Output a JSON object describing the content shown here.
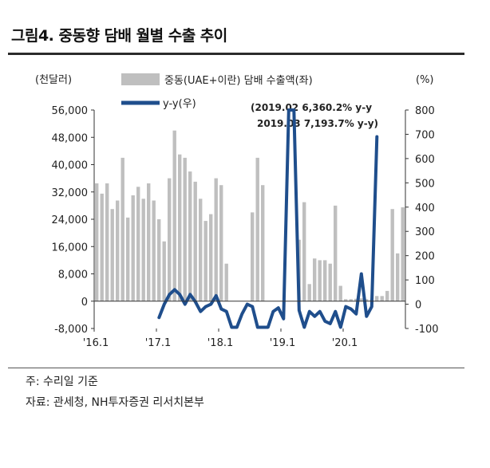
{
  "title": "그림4. 중동향 담배 월별 수출 추이",
  "notes": [
    "주: 수리일 기준",
    "자료: 관세청, NH투자증권 리서치본부"
  ],
  "colors": {
    "bar": "#bfbfbf",
    "line": "#1f4e8c",
    "axis": "#333333"
  },
  "chart_data": {
    "type": "bar",
    "left_unit": "(천달러)",
    "right_unit": "(%)",
    "left_ylim": [
      -8000,
      56000
    ],
    "left_ticks": [
      "56,000",
      "48,000",
      "40,000",
      "32,000",
      "24,000",
      "16,000",
      "8,000",
      "0",
      "-8,000"
    ],
    "right_ylim": [
      -100,
      800
    ],
    "right_ticks": [
      "800",
      "700",
      "600",
      "500",
      "400",
      "300",
      "200",
      "100",
      "0",
      "-100"
    ],
    "x_start": "2016-01",
    "x_tick_labels": [
      "'16.1",
      "'17.1",
      "'18.1",
      "'19.1",
      "'20.1"
    ],
    "legend_position": "top-center",
    "series": [
      {
        "name": "중동(UAE+이란) 담배 수출액(좌)",
        "kind": "bar",
        "axis": "left",
        "values": [
          34500,
          31500,
          34500,
          27000,
          29500,
          42000,
          24500,
          31000,
          33500,
          30000,
          34500,
          29500,
          24000,
          17500,
          36000,
          50000,
          43000,
          42000,
          38000,
          35000,
          30000,
          23500,
          25500,
          36000,
          34000,
          11000,
          0,
          0,
          0,
          0,
          26000,
          42000,
          34000,
          0,
          0,
          0,
          0,
          0,
          0,
          18000,
          29000,
          5000,
          12500,
          12000,
          12000,
          11000,
          28000,
          4500,
          600,
          600,
          700,
          800,
          600,
          500,
          1500,
          1500,
          3000,
          27000,
          14000,
          27500
        ]
      },
      {
        "name": "y-y(우)",
        "kind": "line",
        "axis": "right",
        "values": [
          null,
          null,
          null,
          null,
          null,
          null,
          null,
          null,
          null,
          null,
          null,
          null,
          -55,
          0,
          40,
          60,
          40,
          0,
          40,
          10,
          -30,
          -10,
          0,
          35,
          -20,
          -30,
          -95,
          -95,
          -40,
          0,
          -10,
          -95,
          -95,
          -95,
          -30,
          -15,
          -60,
          6360.2,
          7193.7,
          -25,
          -95,
          -30,
          -50,
          -30,
          -70,
          -80,
          -30,
          -95,
          -10,
          -20,
          -40,
          125,
          -50,
          -10,
          690,
          null,
          null,
          null,
          null,
          null
        ]
      }
    ],
    "annotations": [
      "(2019.02 6,360.2% y-y",
      "2019.03 7,193.7% y-y)"
    ]
  }
}
